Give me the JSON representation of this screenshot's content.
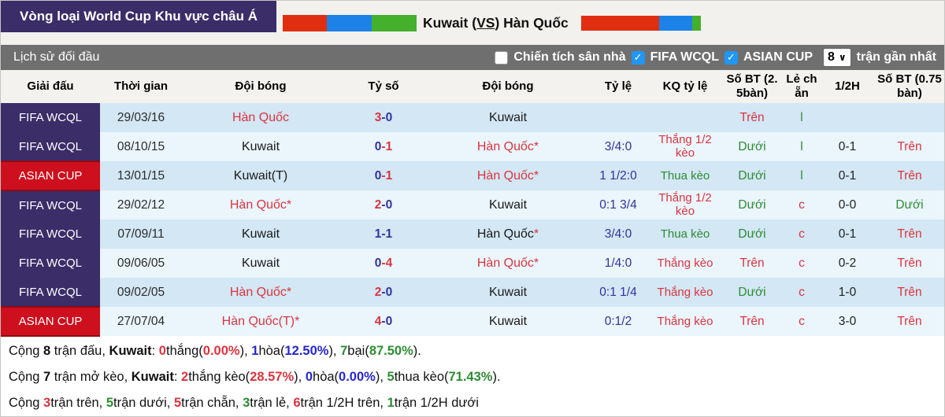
{
  "header": {
    "tournament": "Vòng loại World Cup Khu vực châu Á",
    "title": {
      "home": "Kuwait",
      "open": " (",
      "vs": "VS",
      "close": ") ",
      "away": "Hàn Quốc"
    },
    "flag_colors": [
      "#df2f10",
      "#1c82e8",
      "#45b02c"
    ]
  },
  "filter": {
    "title": "Lịch sử đối đầu",
    "checkboxes": [
      {
        "label": "Chiến tích sân nhà",
        "checked": false
      },
      {
        "label": "FIFA WCQL",
        "checked": true
      },
      {
        "label": "ASIAN CUP",
        "checked": true
      }
    ],
    "select": {
      "value": "8",
      "suffix": "trận gần nhất"
    }
  },
  "table": {
    "headers": [
      "Giải đấu",
      "Thời gian",
      "Đội bóng",
      "Tỷ số",
      "Đội bóng",
      "Tỷ lệ",
      "KQ tỷ lệ",
      "Số BT (2.5bàn)",
      "Lẻ chẵn",
      "1/2H",
      "Số BT (0.75bàn)"
    ],
    "rows": [
      {
        "league": {
          "text": "FIFA WCQL",
          "type": "wcql"
        },
        "date": "29/03/16",
        "home": {
          "name": "Hàn Quốc",
          "color": "red",
          "star": ""
        },
        "score": {
          "h": "3",
          "hc": "red",
          "sep": "-",
          "a": "0",
          "ac": "navy"
        },
        "away": {
          "name": "Kuwait",
          "color": "black",
          "star": ""
        },
        "odds": "",
        "kq": {
          "text": "",
          "color": "red"
        },
        "ou25": {
          "text": "Trên",
          "color": "red"
        },
        "oe": {
          "text": "l",
          "color": "green"
        },
        "h1": "",
        "ou075": {
          "text": "",
          "color": "red"
        }
      },
      {
        "league": {
          "text": "FIFA WCQL",
          "type": "wcql"
        },
        "date": "08/10/15",
        "home": {
          "name": "Kuwait",
          "color": "black",
          "star": ""
        },
        "score": {
          "h": "0",
          "hc": "navy",
          "sep": "-",
          "a": "1",
          "ac": "red"
        },
        "away": {
          "name": "Hàn Quốc",
          "color": "red",
          "star": "*"
        },
        "odds": "3/4:0",
        "kq": {
          "text": "Thắng 1/2 kèo",
          "color": "red"
        },
        "ou25": {
          "text": "Dưới",
          "color": "green"
        },
        "oe": {
          "text": "l",
          "color": "green"
        },
        "h1": "0-1",
        "ou075": {
          "text": "Trên",
          "color": "red"
        }
      },
      {
        "league": {
          "text": "ASIAN CUP",
          "type": "asian"
        },
        "date": "13/01/15",
        "home": {
          "name": "Kuwait(T)",
          "color": "black",
          "star": ""
        },
        "score": {
          "h": "0",
          "hc": "navy",
          "sep": "-",
          "a": "1",
          "ac": "red"
        },
        "away": {
          "name": "Hàn Quốc",
          "color": "red",
          "star": "*"
        },
        "odds": "1 1/2:0",
        "kq": {
          "text": "Thua kèo",
          "color": "green"
        },
        "ou25": {
          "text": "Dưới",
          "color": "green"
        },
        "oe": {
          "text": "l",
          "color": "green"
        },
        "h1": "0-1",
        "ou075": {
          "text": "Trên",
          "color": "red"
        }
      },
      {
        "league": {
          "text": "FIFA WCQL",
          "type": "wcql"
        },
        "date": "29/02/12",
        "home": {
          "name": "Hàn Quốc",
          "color": "red",
          "star": "*"
        },
        "score": {
          "h": "2",
          "hc": "red",
          "sep": "-",
          "a": "0",
          "ac": "navy"
        },
        "away": {
          "name": "Kuwait",
          "color": "black",
          "star": ""
        },
        "odds": "0:1 3/4",
        "kq": {
          "text": "Thắng 1/2 kèo",
          "color": "red"
        },
        "ou25": {
          "text": "Dưới",
          "color": "green"
        },
        "oe": {
          "text": "c",
          "color": "red"
        },
        "h1": "0-0",
        "ou075": {
          "text": "Dưới",
          "color": "green"
        }
      },
      {
        "league": {
          "text": "FIFA WCQL",
          "type": "wcql"
        },
        "date": "07/09/11",
        "home": {
          "name": "Kuwait",
          "color": "black",
          "star": ""
        },
        "score": {
          "h": "1",
          "hc": "navy",
          "sep": "-",
          "a": "1",
          "ac": "navy"
        },
        "away": {
          "name": "Hàn Quốc",
          "color": "black",
          "star": "*"
        },
        "odds": "3/4:0",
        "kq": {
          "text": "Thua kèo",
          "color": "green"
        },
        "ou25": {
          "text": "Dưới",
          "color": "green"
        },
        "oe": {
          "text": "c",
          "color": "red"
        },
        "h1": "0-1",
        "ou075": {
          "text": "Trên",
          "color": "red"
        }
      },
      {
        "league": {
          "text": "FIFA WCQL",
          "type": "wcql"
        },
        "date": "09/06/05",
        "home": {
          "name": "Kuwait",
          "color": "black",
          "star": ""
        },
        "score": {
          "h": "0",
          "hc": "navy",
          "sep": "-",
          "a": "4",
          "ac": "red"
        },
        "away": {
          "name": "Hàn Quốc",
          "color": "red",
          "star": "*"
        },
        "odds": "1/4:0",
        "kq": {
          "text": "Thắng kèo",
          "color": "red"
        },
        "ou25": {
          "text": "Trên",
          "color": "red"
        },
        "oe": {
          "text": "c",
          "color": "red"
        },
        "h1": "0-2",
        "ou075": {
          "text": "Trên",
          "color": "red"
        }
      },
      {
        "league": {
          "text": "FIFA WCQL",
          "type": "wcql"
        },
        "date": "09/02/05",
        "home": {
          "name": "Hàn Quốc",
          "color": "red",
          "star": "*"
        },
        "score": {
          "h": "2",
          "hc": "red",
          "sep": "-",
          "a": "0",
          "ac": "navy"
        },
        "away": {
          "name": "Kuwait",
          "color": "black",
          "star": ""
        },
        "odds": "0:1 1/4",
        "kq": {
          "text": "Thắng kèo",
          "color": "red"
        },
        "ou25": {
          "text": "Dưới",
          "color": "green"
        },
        "oe": {
          "text": "c",
          "color": "red"
        },
        "h1": "1-0",
        "ou075": {
          "text": "Trên",
          "color": "red"
        }
      },
      {
        "league": {
          "text": "ASIAN CUP",
          "type": "asian"
        },
        "date": "27/07/04",
        "home": {
          "name": "Hàn Quốc(T)",
          "color": "red",
          "star": "*"
        },
        "score": {
          "h": "4",
          "hc": "red",
          "sep": "-",
          "a": "0",
          "ac": "navy"
        },
        "away": {
          "name": "Kuwait",
          "color": "black",
          "star": ""
        },
        "odds": "0:1/2",
        "kq": {
          "text": "Thắng kèo",
          "color": "red"
        },
        "ou25": {
          "text": "Trên",
          "color": "red"
        },
        "oe": {
          "text": "c",
          "color": "red"
        },
        "h1": "3-0",
        "ou075": {
          "text": "Trên",
          "color": "red"
        }
      }
    ]
  },
  "summary": {
    "lines": [
      [
        {
          "t": "Cộng "
        },
        {
          "t": "8",
          "b": true
        },
        {
          "t": " trận đấu, "
        },
        {
          "t": "Kuwait",
          "b": true
        },
        {
          "t": ": "
        },
        {
          "t": "0",
          "b": true,
          "c": "red"
        },
        {
          "t": "thắng("
        },
        {
          "t": "0.00%",
          "b": true,
          "c": "red"
        },
        {
          "t": "), "
        },
        {
          "t": "1",
          "b": true,
          "c": "blue"
        },
        {
          "t": "hòa("
        },
        {
          "t": "12.50%",
          "b": true,
          "c": "blue"
        },
        {
          "t": "), "
        },
        {
          "t": "7",
          "b": true,
          "c": "green"
        },
        {
          "t": "bại("
        },
        {
          "t": "87.50%",
          "b": true,
          "c": "green"
        },
        {
          "t": ")."
        }
      ],
      [
        {
          "t": "Cộng "
        },
        {
          "t": "7",
          "b": true
        },
        {
          "t": " trận mở kèo, "
        },
        {
          "t": "Kuwait",
          "b": true
        },
        {
          "t": ": "
        },
        {
          "t": "2",
          "b": true,
          "c": "red"
        },
        {
          "t": "thắng kèo("
        },
        {
          "t": "28.57%",
          "b": true,
          "c": "red"
        },
        {
          "t": "), "
        },
        {
          "t": "0",
          "b": true,
          "c": "blue"
        },
        {
          "t": "hòa("
        },
        {
          "t": "0.00%",
          "b": true,
          "c": "blue"
        },
        {
          "t": "), "
        },
        {
          "t": "5",
          "b": true,
          "c": "green"
        },
        {
          "t": "thua kèo("
        },
        {
          "t": "71.43%",
          "b": true,
          "c": "green"
        },
        {
          "t": ")."
        }
      ],
      [
        {
          "t": "Cộng "
        },
        {
          "t": "3",
          "b": true,
          "c": "red"
        },
        {
          "t": "trận trên, "
        },
        {
          "t": "5",
          "b": true,
          "c": "green"
        },
        {
          "t": "trận dưới, "
        },
        {
          "t": "5",
          "b": true,
          "c": "red"
        },
        {
          "t": "trận chẵn, "
        },
        {
          "t": "3",
          "b": true,
          "c": "green"
        },
        {
          "t": "trận lẻ, "
        },
        {
          "t": "6",
          "b": true,
          "c": "red"
        },
        {
          "t": "trận 1/2H trên, "
        },
        {
          "t": "1",
          "b": true,
          "c": "green"
        },
        {
          "t": "trận 1/2H dưới"
        }
      ]
    ]
  },
  "colors": {
    "league_purple": "#3a2d68",
    "league_red": "#cd0f1e",
    "row_odd": "#d3e7f4",
    "row_even": "#eaf5fc",
    "bar_gray": "#6f6f6f",
    "checkbox_blue": "#2196f3",
    "text_red": "#d9353f",
    "text_navy": "#32329b",
    "text_green": "#2e8b34",
    "text_blue": "#2626cc"
  }
}
